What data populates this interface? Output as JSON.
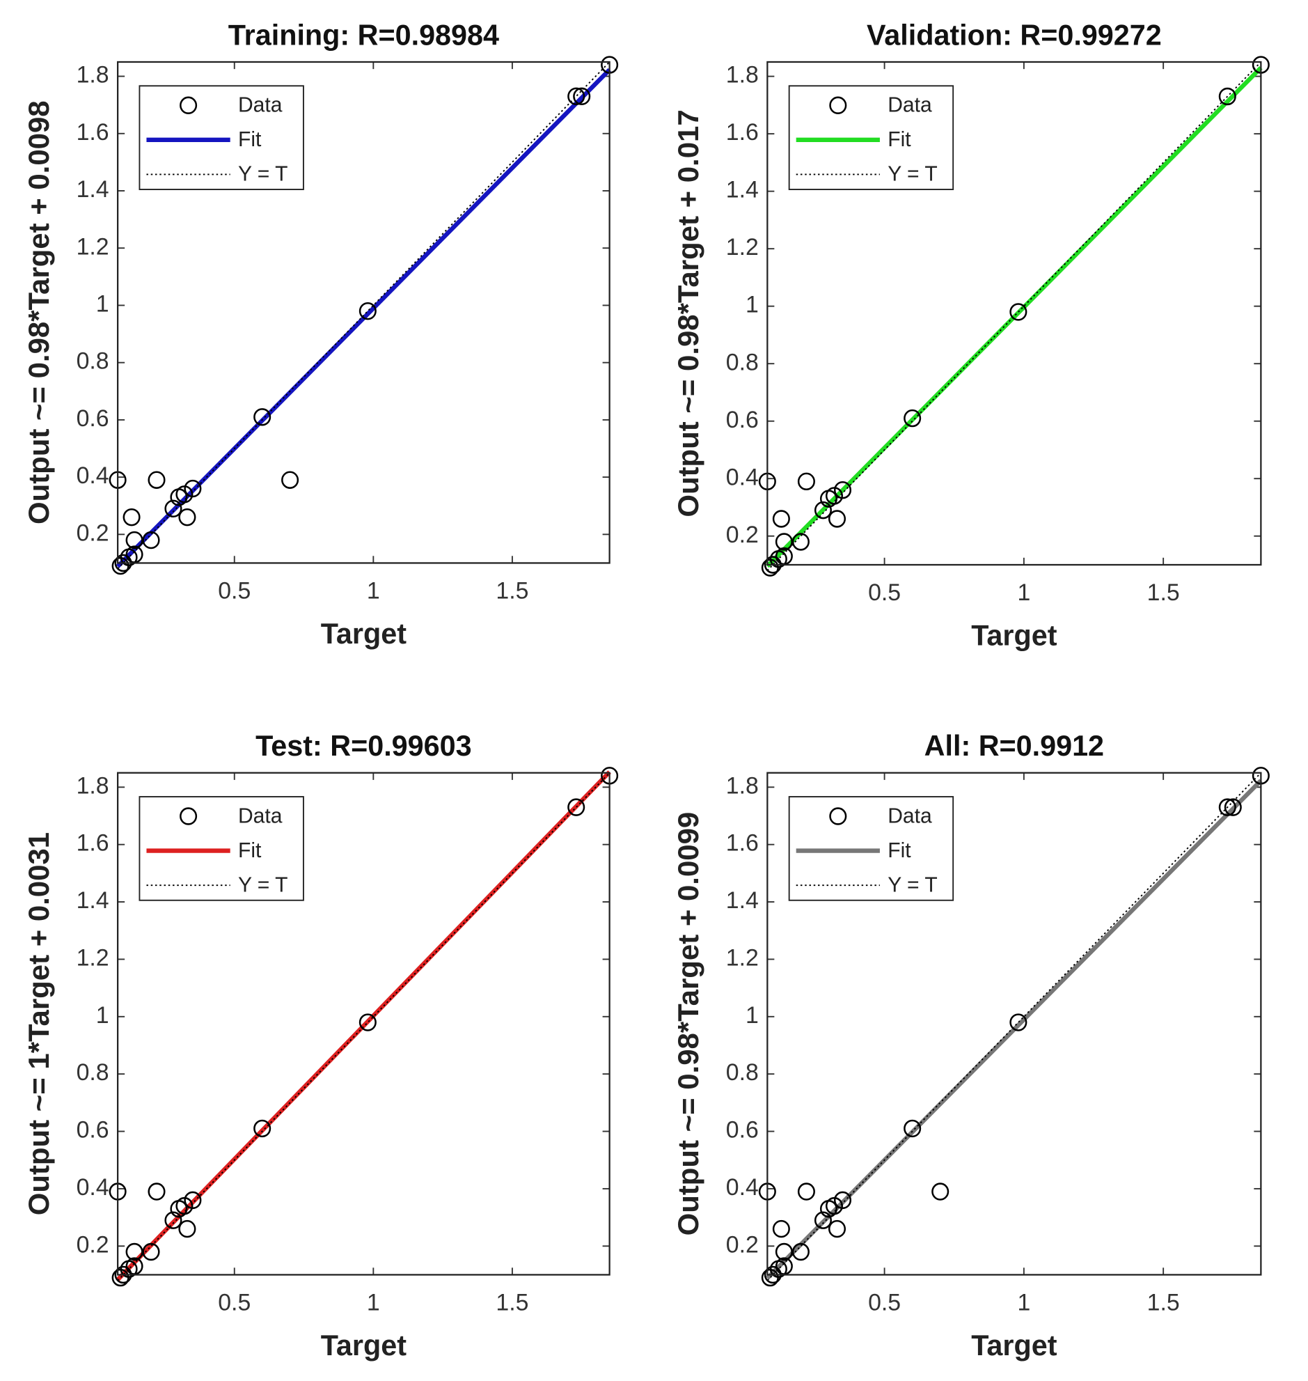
{
  "chart_data": [
    {
      "type": "scatter",
      "title": "Training: R=0.98984",
      "x_label": "Target",
      "y_label": "Output ~= 0.98*Target + 0.0098",
      "xlim": [
        0.08,
        1.85
      ],
      "ylim": [
        0.1,
        1.85
      ],
      "xticks": [
        0.5,
        1,
        1.5
      ],
      "yticks": [
        0.2,
        0.4,
        0.6,
        0.8,
        1,
        1.2,
        1.4,
        1.6,
        1.8
      ],
      "series": [
        {
          "name": "Data",
          "color": "#000000",
          "style": "circle",
          "x": [
            0.08,
            0.13,
            0.22,
            0.7,
            0.6,
            0.98,
            1.73,
            1.75,
            1.85,
            0.33,
            0.3,
            0.32,
            0.35,
            0.28,
            0.2,
            0.14,
            0.1,
            0.12,
            0.14,
            0.09
          ],
          "values": [
            0.39,
            0.26,
            0.39,
            0.39,
            0.61,
            0.98,
            1.73,
            1.73,
            1.84,
            0.26,
            0.33,
            0.34,
            0.36,
            0.29,
            0.18,
            0.18,
            0.1,
            0.12,
            0.13,
            0.09
          ]
        },
        {
          "name": "Fit",
          "color": "#1515c0",
          "style": "solid",
          "x": [
            0.08,
            1.85
          ],
          "values": [
            0.088,
            1.823
          ]
        },
        {
          "name": "Y = T",
          "color": "#000000",
          "style": "dotted",
          "x": [
            0.08,
            1.85
          ],
          "values": [
            0.08,
            1.85
          ]
        }
      ]
    },
    {
      "type": "scatter",
      "title": "Validation: R=0.99272",
      "x_label": "Target",
      "y_label": "Output ~= 0.98*Target + 0.017",
      "xlim": [
        0.08,
        1.85
      ],
      "ylim": [
        0.1,
        1.85
      ],
      "xticks": [
        0.5,
        1,
        1.5
      ],
      "yticks": [
        0.2,
        0.4,
        0.6,
        0.8,
        1,
        1.2,
        1.4,
        1.6,
        1.8
      ],
      "series": [
        {
          "name": "Data",
          "color": "#000000",
          "style": "circle",
          "x": [
            0.08,
            0.13,
            0.22,
            0.6,
            0.98,
            1.73,
            1.85,
            0.33,
            0.3,
            0.32,
            0.35,
            0.28,
            0.2,
            0.14,
            0.1,
            0.12,
            0.14,
            0.09
          ],
          "values": [
            0.39,
            0.26,
            0.39,
            0.61,
            0.98,
            1.73,
            1.84,
            0.26,
            0.33,
            0.34,
            0.36,
            0.29,
            0.18,
            0.18,
            0.1,
            0.12,
            0.13,
            0.09
          ]
        },
        {
          "name": "Fit",
          "color": "#22dd22",
          "style": "solid",
          "x": [
            0.08,
            1.85
          ],
          "values": [
            0.095,
            1.83
          ]
        },
        {
          "name": "Y = T",
          "color": "#000000",
          "style": "dotted",
          "x": [
            0.08,
            1.85
          ],
          "values": [
            0.08,
            1.85
          ]
        }
      ]
    },
    {
      "type": "scatter",
      "title": "Test: R=0.99603",
      "x_label": "Target",
      "y_label": "Output ~= 1*Target + 0.0031",
      "xlim": [
        0.08,
        1.85
      ],
      "ylim": [
        0.1,
        1.85
      ],
      "xticks": [
        0.5,
        1,
        1.5
      ],
      "yticks": [
        0.2,
        0.4,
        0.6,
        0.8,
        1,
        1.2,
        1.4,
        1.6,
        1.8
      ],
      "series": [
        {
          "name": "Data",
          "color": "#000000",
          "style": "circle",
          "x": [
            0.08,
            0.22,
            0.6,
            0.98,
            1.73,
            1.85,
            0.33,
            0.3,
            0.32,
            0.35,
            0.28,
            0.2,
            0.14,
            0.1,
            0.12,
            0.14,
            0.09
          ],
          "values": [
            0.39,
            0.39,
            0.61,
            0.98,
            1.73,
            1.84,
            0.26,
            0.33,
            0.34,
            0.36,
            0.29,
            0.18,
            0.18,
            0.1,
            0.12,
            0.13,
            0.09
          ]
        },
        {
          "name": "Fit",
          "color": "#dd2020",
          "style": "solid",
          "x": [
            0.08,
            1.85
          ],
          "values": [
            0.083,
            1.853
          ]
        },
        {
          "name": "Y = T",
          "color": "#000000",
          "style": "dotted",
          "x": [
            0.08,
            1.85
          ],
          "values": [
            0.08,
            1.85
          ]
        }
      ]
    },
    {
      "type": "scatter",
      "title": "All: R=0.9912",
      "x_label": "Target",
      "y_label": "Output ~= 0.98*Target + 0.0099",
      "xlim": [
        0.08,
        1.85
      ],
      "ylim": [
        0.1,
        1.85
      ],
      "xticks": [
        0.5,
        1,
        1.5
      ],
      "yticks": [
        0.2,
        0.4,
        0.6,
        0.8,
        1,
        1.2,
        1.4,
        1.6,
        1.8
      ],
      "series": [
        {
          "name": "Data",
          "color": "#000000",
          "style": "circle",
          "x": [
            0.08,
            0.13,
            0.22,
            0.7,
            0.6,
            0.98,
            1.73,
            1.75,
            1.85,
            0.33,
            0.3,
            0.32,
            0.35,
            0.28,
            0.2,
            0.14,
            0.1,
            0.12,
            0.14,
            0.09
          ],
          "values": [
            0.39,
            0.26,
            0.39,
            0.39,
            0.61,
            0.98,
            1.73,
            1.73,
            1.84,
            0.26,
            0.33,
            0.34,
            0.36,
            0.29,
            0.18,
            0.18,
            0.1,
            0.12,
            0.13,
            0.09
          ]
        },
        {
          "name": "Fit",
          "color": "#777777",
          "style": "solid",
          "x": [
            0.08,
            1.85
          ],
          "values": [
            0.088,
            1.823
          ]
        },
        {
          "name": "Y = T",
          "color": "#000000",
          "style": "dotted",
          "x": [
            0.08,
            1.85
          ],
          "values": [
            0.08,
            1.85
          ]
        }
      ]
    }
  ]
}
